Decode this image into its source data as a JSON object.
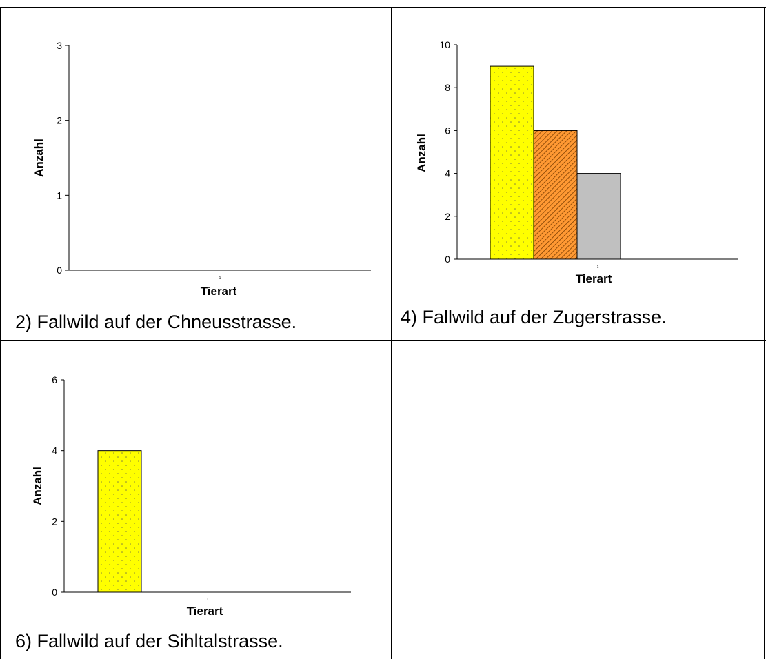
{
  "panels": [
    {
      "caption": "2) Fallwild auf der Chneusstrasse.",
      "chart_data": {
        "type": "bar",
        "xlabel": "Tierart",
        "ylabel": "Anzahl",
        "categories": [
          "1"
        ],
        "series": [
          {
            "values": [
              null
            ],
            "color": "#ffff00",
            "pattern": "dots"
          },
          {
            "values": [
              null
            ],
            "color": "#ff9933",
            "pattern": "hatch"
          },
          {
            "values": [
              null
            ],
            "color": "#c0c0c0",
            "pattern": "none"
          }
        ],
        "ylim": [
          0,
          3
        ],
        "yticks": [
          "0",
          "1",
          "2",
          "3"
        ],
        "grid": false
      }
    },
    {
      "caption": "4) Fallwild auf der Zugerstrasse.",
      "chart_data": {
        "type": "bar",
        "xlabel": "Tierart",
        "ylabel": "Anzahl",
        "categories": [
          "1"
        ],
        "series": [
          {
            "values": [
              9
            ],
            "color": "#ffff00",
            "pattern": "dots"
          },
          {
            "values": [
              6
            ],
            "color": "#ff9933",
            "pattern": "hatch"
          },
          {
            "values": [
              4
            ],
            "color": "#c0c0c0",
            "pattern": "none"
          }
        ],
        "ylim": [
          0,
          10
        ],
        "yticks": [
          "0",
          "2",
          "4",
          "6",
          "8",
          "10"
        ],
        "grid": false
      }
    },
    {
      "caption": "6) Fallwild auf der Sihltalstrasse.",
      "chart_data": {
        "type": "bar",
        "xlabel": "Tierart",
        "ylabel": "Anzahl",
        "categories": [
          "1"
        ],
        "series": [
          {
            "values": [
              4
            ],
            "color": "#ffff00",
            "pattern": "dots"
          },
          {
            "values": [
              null
            ],
            "color": "#ff9933",
            "pattern": "hatch"
          },
          {
            "values": [
              null
            ],
            "color": "#c0c0c0",
            "pattern": "none"
          }
        ],
        "ylim": [
          0,
          6
        ],
        "yticks": [
          "0",
          "2",
          "4",
          "6"
        ],
        "grid": false
      }
    }
  ]
}
